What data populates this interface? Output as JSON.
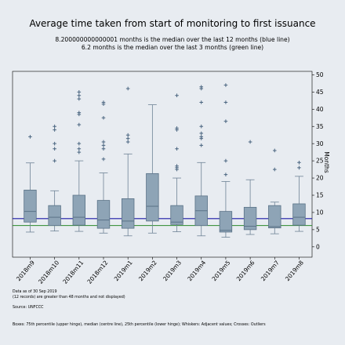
{
  "chart_data": {
    "type": "box",
    "title": "Average time taken from start of monitoring to first issuance",
    "subtitle_lines": [
      "8.200000000000001 months is the median over the last 12 months (blue line)",
      "6.2 months is the median over the last 3 months (green line)"
    ],
    "ylabel": "Months",
    "ylim": [
      -3,
      51
    ],
    "yticks": [
      0,
      5,
      10,
      15,
      20,
      25,
      30,
      35,
      40,
      45,
      50
    ],
    "reference_lines": [
      {
        "label": "median last 12 months",
        "value": 8.2,
        "color": "#1a1aa6"
      },
      {
        "label": "median last 3 months",
        "value": 6.2,
        "color": "#2a8a2a"
      }
    ],
    "categories": [
      "2018m9",
      "2018m10",
      "2018m11",
      "2018m12",
      "2019m1",
      "2019m2",
      "2019m3",
      "2019m4",
      "2019m5",
      "2019m6",
      "2019m7",
      "2019m8"
    ],
    "boxes": [
      {
        "q1": 7.2,
        "median": 10.3,
        "q3": 16.5,
        "lower_whisker": 4.3,
        "upper_whisker": 24.4,
        "outliers": [
          32
        ]
      },
      {
        "q1": 6.2,
        "median": 8.6,
        "q3": 12.0,
        "lower_whisker": 4.6,
        "upper_whisker": 16.3,
        "outliers": [
          25,
          28.5,
          30,
          34,
          35
        ]
      },
      {
        "q1": 6.3,
        "median": 8.6,
        "q3": 15.0,
        "lower_whisker": 4.5,
        "upper_whisker": 25.0,
        "outliers": [
          27.5,
          28.5,
          30,
          35.5,
          38.5,
          39,
          43,
          44,
          45
        ]
      },
      {
        "q1": 5.4,
        "median": 7.8,
        "q3": 13.5,
        "lower_whisker": 4.0,
        "upper_whisker": 21.5,
        "outliers": [
          25.5,
          28.5,
          29.5,
          30.5,
          37.5,
          41.5,
          42
        ]
      },
      {
        "q1": 5.4,
        "median": 7.5,
        "q3": 14.0,
        "lower_whisker": 3.2,
        "upper_whisker": 27.0,
        "outliers": [
          30.5,
          31.5,
          32.5,
          46
        ]
      },
      {
        "q1": 7.5,
        "median": 11.8,
        "q3": 21.3,
        "lower_whisker": 4.0,
        "upper_whisker": 41.3,
        "outliers": []
      },
      {
        "q1": 6.5,
        "median": 7.2,
        "q3": 12.0,
        "lower_whisker": 4.4,
        "upper_whisker": 20.0,
        "outliers": [
          22.5,
          23,
          23.5,
          28.5,
          34,
          34.5,
          44
        ]
      },
      {
        "q1": 6.2,
        "median": 10.5,
        "q3": 14.8,
        "lower_whisker": 3.2,
        "upper_whisker": 24.5,
        "outliers": [
          29.5,
          31.5,
          32,
          33,
          35,
          42,
          46,
          46.5
        ]
      },
      {
        "q1": 4.3,
        "median": 4.8,
        "q3": 10.3,
        "lower_whisker": 2.8,
        "upper_whisker": 19.0,
        "outliers": [
          21,
          25,
          36.5,
          42,
          47
        ]
      },
      {
        "q1": 5.0,
        "median": 6.0,
        "q3": 11.5,
        "lower_whisker": 3.6,
        "upper_whisker": 19.5,
        "outliers": [
          30.5
        ]
      },
      {
        "q1": 5.5,
        "median": 5.9,
        "q3": 12.0,
        "lower_whisker": 3.8,
        "upper_whisker": 13.0,
        "outliers": [
          22.5,
          28
        ]
      },
      {
        "q1": 6.3,
        "median": 8.6,
        "q3": 12.5,
        "lower_whisker": 4.5,
        "upper_whisker": 20.5,
        "outliers": [
          23,
          24.5
        ]
      }
    ],
    "notes": [
      "Data as of 30 Sep 2019",
      "(12 records) are greater than 48 months and not displayed)",
      "Source: UNFCCC"
    ],
    "footer": "Boxes: 75th percentile (upper hinge), median (centre line), 25th percentile (lower hinge); Whiskers: Adjacent values; Crosses: Outliers",
    "colors": {
      "background": "#e8ecf1",
      "box_fill": "#8ea4b6",
      "box_stroke": "#5a7287",
      "whisker": "#6f8396",
      "outlier": "#4a6580",
      "axis": "#000000"
    }
  }
}
